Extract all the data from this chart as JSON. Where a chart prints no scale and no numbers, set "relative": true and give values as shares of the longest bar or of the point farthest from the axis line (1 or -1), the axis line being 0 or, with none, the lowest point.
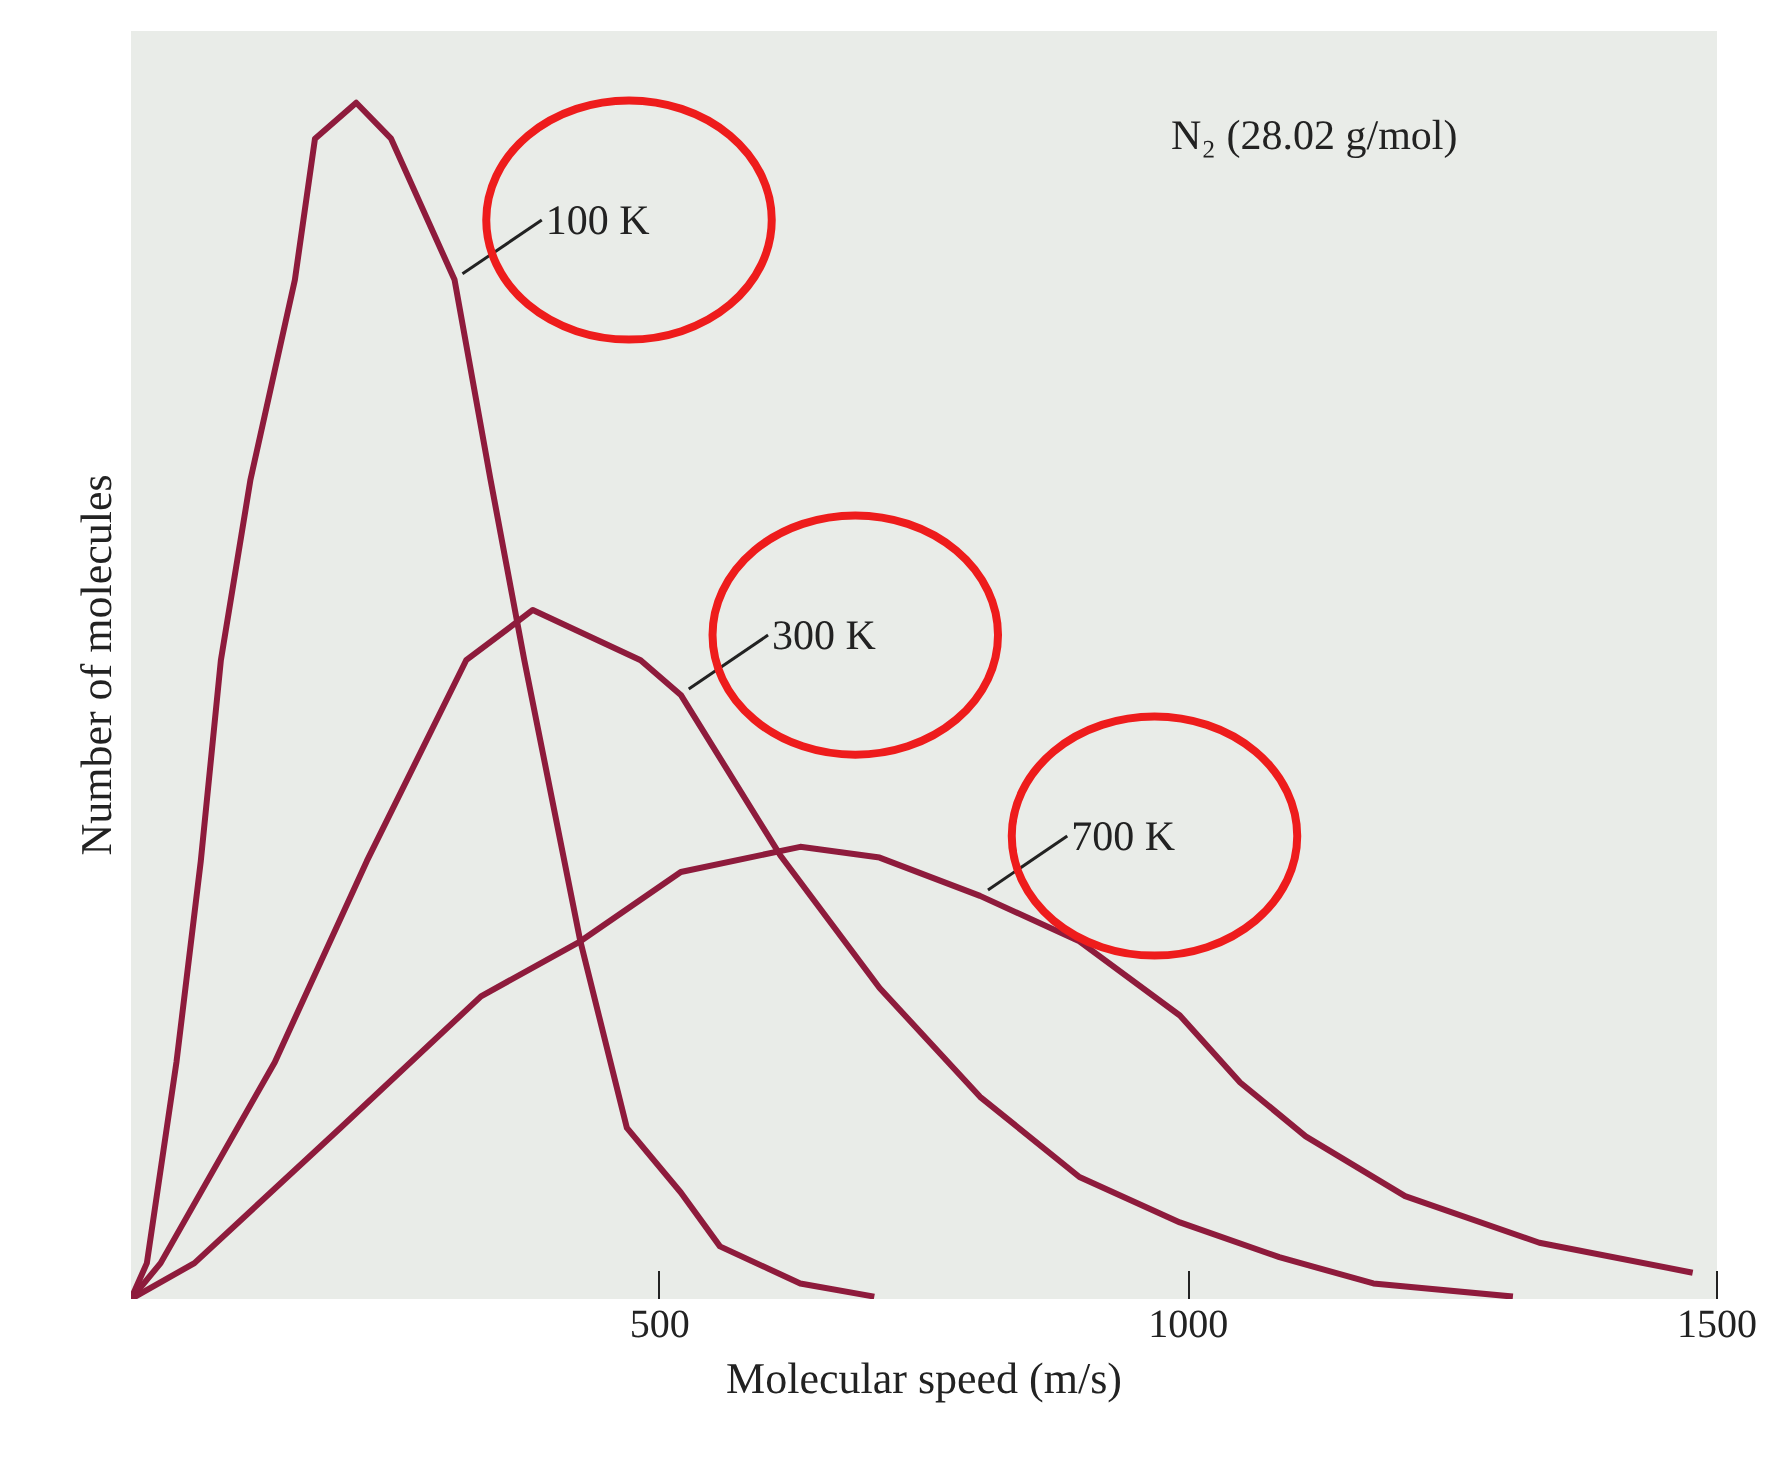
{
  "chart_data": {
    "type": "line",
    "relative": true,
    "xlabel": "Molecular speed (m/s)",
    "ylabel": "Number of molecules",
    "annotations": [
      "N₂ (28.02 g/mol)"
    ],
    "xlim": [
      0,
      1500
    ],
    "xticks": [
      500,
      1000,
      1500
    ],
    "grid": false,
    "marker": "none",
    "line_style": "solid",
    "series": [
      {
        "name": "100 K",
        "color": "#8e1b3c",
        "x": [
          0,
          15,
          43,
          66,
          85,
          113,
          155,
          174,
          213,
          246,
          306,
          340,
          372,
          425,
          469,
          520,
          557,
          633,
          703
        ],
        "values": [
          0,
          0.03,
          0.198,
          0.366,
          0.534,
          0.685,
          0.852,
          0.97,
          1,
          0.97,
          0.852,
          0.685,
          0.534,
          0.299,
          0.143,
          0.089,
          0.044,
          0.013,
          0.002
        ]
      },
      {
        "name": "300 K",
        "color": "#8e1b3c",
        "x": [
          0,
          28,
          136,
          223,
          317,
          380,
          482,
          520,
          614,
          708,
          803,
          897,
          992,
          1086,
          1175,
          1307
        ],
        "values": [
          0,
          0.03,
          0.198,
          0.366,
          0.534,
          0.576,
          0.534,
          0.505,
          0.371,
          0.26,
          0.169,
          0.102,
          0.064,
          0.035,
          0.013,
          0.002
        ]
      },
      {
        "name": "700 K",
        "color": "#8e1b3c",
        "x": [
          0,
          60,
          198,
          331,
          425,
          520,
          633,
          708,
          803,
          897,
          992,
          1049,
          1111,
          1205,
          1332,
          1477
        ],
        "values": [
          0,
          0.03,
          0.143,
          0.253,
          0.299,
          0.357,
          0.378,
          0.369,
          0.337,
          0.299,
          0.237,
          0.181,
          0.136,
          0.086,
          0.047,
          0.022
        ]
      }
    ]
  }
}
